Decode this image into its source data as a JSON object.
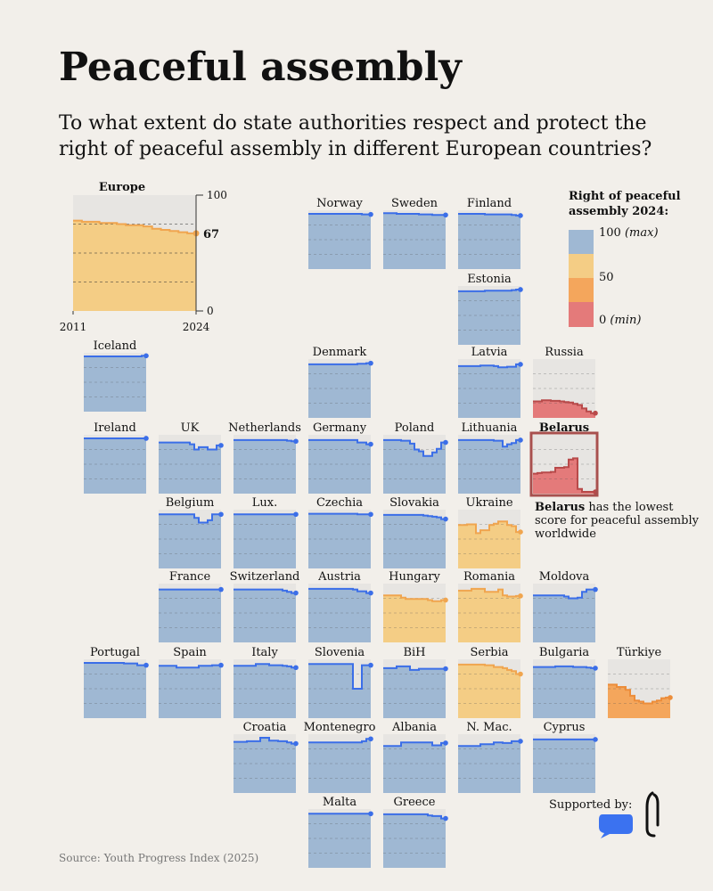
{
  "header": {
    "title": "Peaceful assembly",
    "subtitle": "To what extent do state authorities respect and protect the right of peaceful assembly in different European countries?"
  },
  "legend": {
    "title": "Right of peaceful assembly 2024:",
    "max_value": "100",
    "max_word": "(max)",
    "mid_value": "50",
    "min_value": "0",
    "min_word": "(min)",
    "colors": [
      "#9fb8d3",
      "#f4cd85",
      "#f4a65c",
      "#e47a7a"
    ]
  },
  "note": {
    "bold": "Belarus",
    "text": " has the lowest score for peaceful assembly worldwide"
  },
  "source": "Source: Youth Progress Index (2025)",
  "supported_by": "Supported by:",
  "chart_data": {
    "type": "area",
    "title": "Peaceful assembly",
    "x_range": [
      2011,
      2024
    ],
    "ylim": [
      0,
      100
    ],
    "europe": {
      "name": "Europe",
      "xlabel_start": "2011",
      "xlabel_end": "2024",
      "ytick_top": "100",
      "ytick_bottom": "0",
      "value_2024": "67",
      "values": [
        78,
        77,
        77,
        76,
        76,
        75,
        74,
        74,
        73,
        71,
        70,
        69,
        68,
        67
      ]
    },
    "series": [
      {
        "name": "Norway",
        "values": [
          94,
          94,
          94,
          94,
          94,
          94,
          94,
          94,
          94,
          94,
          94,
          94,
          93,
          93
        ]
      },
      {
        "name": "Sweden",
        "values": [
          95,
          95,
          95,
          94,
          94,
          94,
          94,
          94,
          93,
          93,
          93,
          92,
          92,
          92
        ]
      },
      {
        "name": "Finland",
        "values": [
          94,
          94,
          94,
          94,
          94,
          94,
          93,
          93,
          93,
          93,
          93,
          93,
          92,
          91
        ]
      },
      {
        "name": "Estonia",
        "values": [
          91,
          91,
          91,
          91,
          91,
          91,
          92,
          92,
          92,
          92,
          92,
          92,
          93,
          94
        ]
      },
      {
        "name": "Iceland",
        "values": [
          94,
          94,
          94,
          94,
          94,
          94,
          94,
          94,
          94,
          94,
          94,
          94,
          94,
          95
        ]
      },
      {
        "name": "Denmark",
        "values": [
          91,
          91,
          91,
          91,
          91,
          91,
          91,
          91,
          91,
          91,
          91,
          92,
          92,
          93
        ]
      },
      {
        "name": "Latvia",
        "values": [
          88,
          88,
          88,
          88,
          88,
          89,
          89,
          89,
          88,
          86,
          86,
          87,
          87,
          91
        ]
      },
      {
        "name": "Russia",
        "values": [
          28,
          28,
          30,
          30,
          29,
          29,
          28,
          27,
          26,
          24,
          22,
          16,
          11,
          8
        ]
      },
      {
        "name": "Ireland",
        "values": [
          94,
          94,
          94,
          94,
          94,
          94,
          94,
          94,
          94,
          94,
          94,
          94,
          94,
          94
        ]
      },
      {
        "name": "UK",
        "values": [
          87,
          87,
          87,
          87,
          87,
          87,
          87,
          84,
          75,
          79,
          79,
          75,
          75,
          82
        ]
      },
      {
        "name": "Netherlands",
        "values": [
          91,
          91,
          91,
          91,
          91,
          91,
          91,
          91,
          91,
          91,
          91,
          91,
          90,
          89
        ]
      },
      {
        "name": "Germany",
        "values": [
          91,
          91,
          91,
          91,
          91,
          91,
          91,
          91,
          91,
          91,
          91,
          87,
          87,
          84
        ]
      },
      {
        "name": "Poland",
        "values": [
          91,
          91,
          91,
          91,
          90,
          90,
          85,
          75,
          72,
          64,
          64,
          70,
          76,
          87
        ]
      },
      {
        "name": "Lithuania",
        "values": [
          91,
          91,
          91,
          91,
          91,
          91,
          91,
          91,
          90,
          90,
          80,
          84,
          86,
          91
        ]
      },
      {
        "name": "Belarus",
        "values": [
          34,
          35,
          36,
          36,
          37,
          44,
          44,
          45,
          58,
          60,
          8,
          3,
          3,
          3
        ]
      },
      {
        "name": "Belgium",
        "values": [
          92,
          92,
          92,
          92,
          92,
          92,
          92,
          92,
          86,
          78,
          78,
          82,
          92,
          92
        ]
      },
      {
        "name": "Lux.",
        "values": [
          92,
          92,
          92,
          92,
          92,
          92,
          92,
          92,
          92,
          92,
          92,
          92,
          92,
          92
        ]
      },
      {
        "name": "Czechia",
        "values": [
          93,
          93,
          93,
          93,
          93,
          93,
          93,
          93,
          93,
          93,
          93,
          92,
          92,
          92
        ]
      },
      {
        "name": "Slovakia",
        "values": [
          91,
          91,
          91,
          91,
          91,
          91,
          91,
          91,
          91,
          90,
          89,
          88,
          87,
          84
        ]
      },
      {
        "name": "Ukraine",
        "values": [
          74,
          74,
          75,
          75,
          60,
          65,
          65,
          74,
          76,
          80,
          80,
          74,
          72,
          62
        ]
      },
      {
        "name": "France",
        "values": [
          90,
          90,
          90,
          90,
          90,
          90,
          90,
          90,
          90,
          90,
          90,
          90,
          90,
          90
        ]
      },
      {
        "name": "Switzerland",
        "values": [
          90,
          90,
          90,
          90,
          90,
          90,
          90,
          90,
          90,
          90,
          90,
          88,
          86,
          84
        ]
      },
      {
        "name": "Austria",
        "values": [
          91,
          91,
          91,
          91,
          91,
          91,
          91,
          91,
          91,
          91,
          90,
          87,
          87,
          84
        ]
      },
      {
        "name": "Hungary",
        "values": [
          80,
          80,
          80,
          80,
          76,
          74,
          74,
          74,
          74,
          74,
          72,
          70,
          70,
          72
        ]
      },
      {
        "name": "Romania",
        "values": [
          88,
          88,
          88,
          91,
          91,
          91,
          86,
          86,
          86,
          90,
          80,
          78,
          78,
          79
        ]
      },
      {
        "name": "Moldova",
        "values": [
          80,
          80,
          80,
          80,
          80,
          80,
          80,
          78,
          75,
          75,
          76,
          86,
          90,
          90
        ]
      },
      {
        "name": "Portugal",
        "values": [
          94,
          94,
          94,
          94,
          94,
          94,
          94,
          94,
          94,
          93,
          93,
          93,
          90,
          90
        ]
      },
      {
        "name": "Spain",
        "values": [
          89,
          89,
          89,
          89,
          86,
          86,
          86,
          86,
          86,
          89,
          89,
          89,
          90,
          90
        ]
      },
      {
        "name": "Italy",
        "values": [
          89,
          89,
          89,
          89,
          89,
          92,
          92,
          92,
          90,
          90,
          90,
          89,
          88,
          86
        ]
      },
      {
        "name": "Slovenia",
        "values": [
          92,
          92,
          92,
          92,
          92,
          92,
          92,
          92,
          92,
          92,
          50,
          50,
          90,
          90
        ]
      },
      {
        "name": "BiH",
        "values": [
          85,
          85,
          85,
          88,
          88,
          88,
          82,
          82,
          84,
          84,
          84,
          84,
          84,
          84
        ]
      },
      {
        "name": "Serbia",
        "values": [
          91,
          91,
          91,
          91,
          91,
          91,
          90,
          90,
          87,
          87,
          85,
          82,
          80,
          75
        ]
      },
      {
        "name": "Bulgaria",
        "values": [
          87,
          87,
          87,
          87,
          87,
          88,
          88,
          88,
          88,
          87,
          87,
          87,
          86,
          85
        ]
      },
      {
        "name": "Türkiye",
        "values": [
          57,
          57,
          53,
          53,
          48,
          38,
          30,
          28,
          25,
          25,
          28,
          30,
          34,
          35
        ]
      },
      {
        "name": "Croatia",
        "values": [
          87,
          87,
          87,
          88,
          88,
          88,
          94,
          94,
          89,
          89,
          88,
          88,
          86,
          84
        ]
      },
      {
        "name": "Montenegro",
        "values": [
          86,
          86,
          86,
          86,
          86,
          86,
          86,
          86,
          86,
          86,
          86,
          86,
          88,
          92
        ]
      },
      {
        "name": "Albania",
        "values": [
          80,
          80,
          80,
          80,
          86,
          86,
          86,
          86,
          86,
          86,
          86,
          81,
          81,
          85
        ]
      },
      {
        "name": "N. Mac.",
        "values": [
          80,
          80,
          80,
          80,
          80,
          83,
          83,
          83,
          86,
          86,
          85,
          85,
          88,
          88
        ]
      },
      {
        "name": "Cyprus",
        "values": [
          91,
          91,
          91,
          91,
          91,
          91,
          91,
          91,
          91,
          91,
          91,
          91,
          91,
          91
        ]
      },
      {
        "name": "Malta",
        "values": [
          92,
          92,
          92,
          92,
          92,
          92,
          92,
          92,
          92,
          92,
          92,
          92,
          92,
          92
        ]
      },
      {
        "name": "Greece",
        "values": [
          91,
          91,
          91,
          91,
          91,
          91,
          91,
          91,
          91,
          91,
          89,
          88,
          88,
          84
        ]
      }
    ]
  }
}
